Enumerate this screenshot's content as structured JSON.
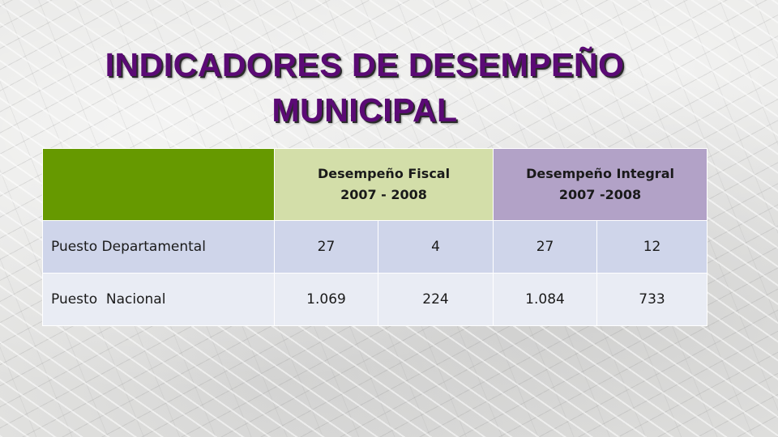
{
  "title": {
    "line1": "INDICADORES DE DESEMPEÑO",
    "line2": "MUNICIPAL"
  },
  "table": {
    "header": {
      "fiscal": {
        "label": "Desempeño Fiscal",
        "years": "2007 - 2008"
      },
      "integral": {
        "label": "Desempeño Integral",
        "years": "2007 -2008"
      }
    },
    "rows": [
      {
        "label": "Puesto Departamental",
        "values": [
          "27",
          "4",
          "27",
          "12"
        ]
      },
      {
        "label": "Puesto  Nacional",
        "values": [
          "1.069",
          "224",
          "1.084",
          "733"
        ]
      }
    ]
  },
  "colors": {
    "title": "#5b0a75",
    "corner_header": "#669900",
    "fiscal_header": "#d3dea9",
    "integral_header": "#b2a2c7",
    "row_odd": "#cfd5ea",
    "row_even": "#e9ecf4"
  }
}
